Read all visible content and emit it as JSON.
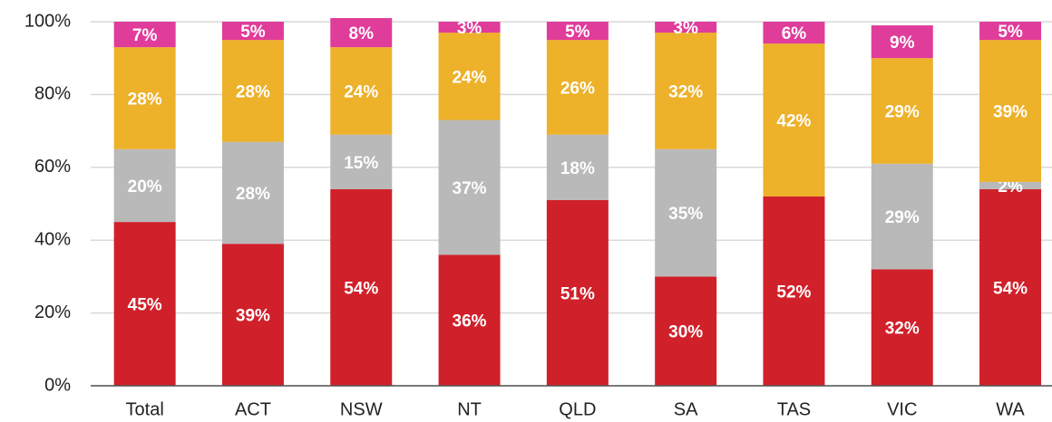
{
  "chart_data": {
    "type": "stacked_bar",
    "categories": [
      "Total",
      "ACT",
      "NSW",
      "NT",
      "QLD",
      "SA",
      "TAS",
      "VIC",
      "WA"
    ],
    "series": [
      {
        "color": "#d0202a",
        "values": [
          45,
          39,
          54,
          36,
          51,
          30,
          52,
          32,
          54
        ],
        "value_labels": [
          "45%",
          "39%",
          "54%",
          "36%",
          "51%",
          "30%",
          "52%",
          "32%",
          "54%"
        ]
      },
      {
        "color": "#b9b9b9",
        "values": [
          20,
          28,
          15,
          37,
          18,
          35,
          null,
          29,
          2
        ],
        "value_labels": [
          "20%",
          "28%",
          "15%",
          "37%",
          "18%",
          "35%",
          null,
          "29%",
          "2%"
        ]
      },
      {
        "color": "#edb12a",
        "values": [
          28,
          28,
          24,
          24,
          26,
          32,
          42,
          29,
          39
        ],
        "value_labels": [
          "28%",
          "28%",
          "24%",
          "24%",
          "26%",
          "32%",
          "42%",
          "29%",
          "39%"
        ]
      },
      {
        "color": "#e03c9a",
        "values": [
          7,
          5,
          8,
          3,
          5,
          3,
          6,
          9,
          5
        ],
        "value_labels": [
          "7%",
          "5%",
          "8%",
          "3%",
          "5%",
          "3%",
          "6%",
          "9%",
          "5%"
        ]
      }
    ],
    "ylim": [
      0,
      100
    ],
    "yticks": [
      {
        "value": 0,
        "label": "0%"
      },
      {
        "value": 20,
        "label": "20%"
      },
      {
        "value": 40,
        "label": "40%"
      },
      {
        "value": 60,
        "label": "60%"
      },
      {
        "value": 80,
        "label": "80%"
      },
      {
        "value": 100,
        "label": "100%"
      }
    ],
    "grid": true
  }
}
